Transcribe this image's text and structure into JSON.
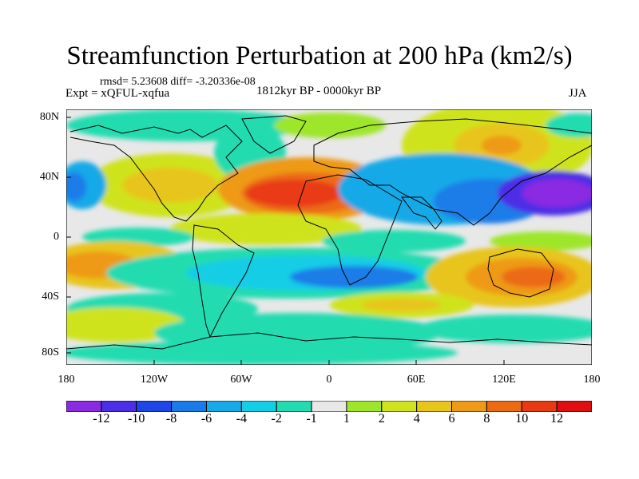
{
  "title": "Streamfunction Perturbation at 200 hPa (km2/s)",
  "stats_line": "rmsd= 5.23608 diff= -3.20336e-08",
  "experiment": "Expt = xQFUL-xqfua",
  "period": "1812kyr BP - 0000kyr BP",
  "season": "JJA",
  "lat_ticks": [
    "80N",
    "40N",
    "0",
    "40S",
    "80S"
  ],
  "lon_ticks": [
    "180",
    "120W",
    "60W",
    "0",
    "60E",
    "120E",
    "180"
  ],
  "colorbar": {
    "labels": [
      "-12",
      "-10",
      "-8",
      "-6",
      "-4",
      "-2",
      "-1",
      "1",
      "2",
      "4",
      "6",
      "8",
      "10",
      "12"
    ],
    "colors": [
      "#8a2be2",
      "#4b2ee6",
      "#1e46e6",
      "#1a7be8",
      "#18a9e8",
      "#14cde6",
      "#22dcb0",
      "#e8e8e8",
      "#9ee62c",
      "#cfe31e",
      "#e8c51a",
      "#ee9a16",
      "#ec6a12",
      "#e83a12",
      "#e00e0e"
    ]
  },
  "colors": {
    "ocean_missing": "#e8e8e8",
    "coastline": "#000000"
  }
}
